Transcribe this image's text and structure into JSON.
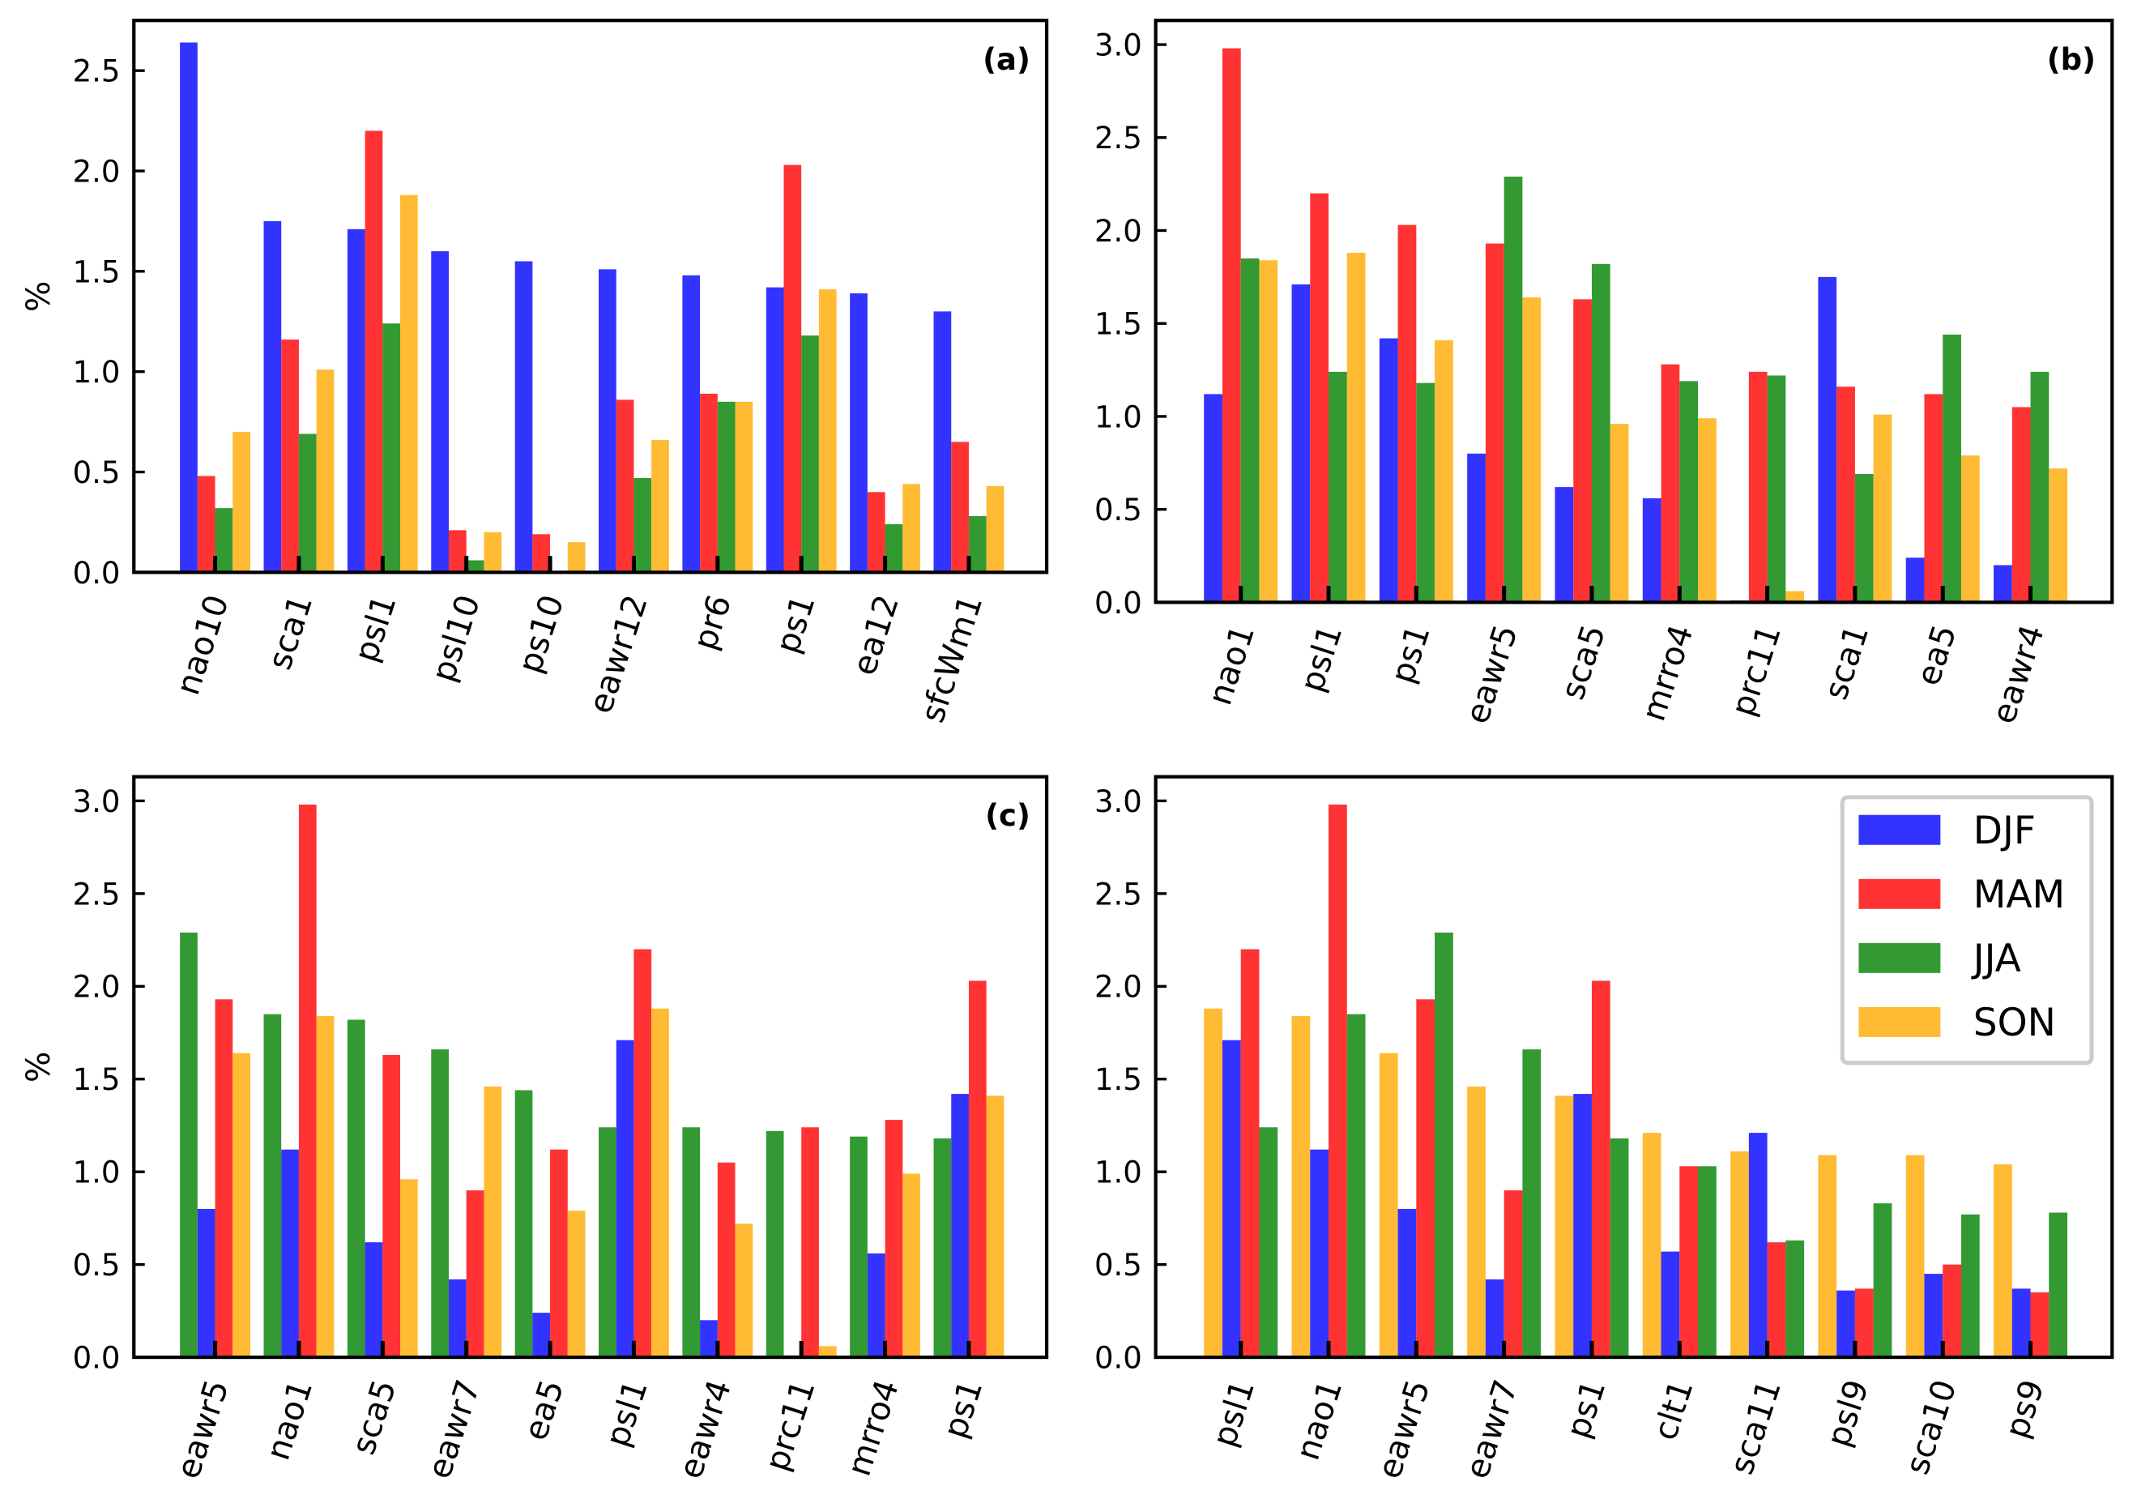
{
  "colors": {
    "DJF": "#3333ff",
    "MAM": "#ff3333",
    "JJA": "#339933",
    "SON": "#ffbb33"
  },
  "legend": [
    "DJF",
    "MAM",
    "JJA",
    "SON"
  ],
  "chart_data": [
    {
      "type": "bar",
      "panel": "(a)",
      "ylabel": "%",
      "ylim": [
        0,
        2.75
      ],
      "yticks": [
        "0.0",
        "0.5",
        "1.0",
        "1.5",
        "2.0",
        "2.5"
      ],
      "ytick_values": [
        0,
        0.5,
        1,
        1.5,
        2,
        2.5
      ],
      "categories": [
        "nao10",
        "sca1",
        "psl1",
        "psl10",
        "ps10",
        "eawr12",
        "pr6",
        "ps1",
        "ea12",
        "sfcWm1"
      ],
      "series": [
        {
          "name": "DJF",
          "values": [
            2.64,
            1.75,
            1.71,
            1.6,
            1.55,
            1.51,
            1.48,
            1.42,
            1.39,
            1.3
          ]
        },
        {
          "name": "MAM",
          "values": [
            0.48,
            1.16,
            2.2,
            0.21,
            0.19,
            0.86,
            0.89,
            2.03,
            0.4,
            0.65
          ]
        },
        {
          "name": "JJA",
          "values": [
            0.32,
            0.69,
            1.24,
            0.06,
            0.0,
            0.47,
            0.85,
            1.18,
            0.24,
            0.28
          ]
        },
        {
          "name": "SON",
          "values": [
            0.7,
            1.01,
            1.88,
            0.2,
            0.15,
            0.66,
            0.85,
            1.41,
            0.44,
            0.43
          ]
        }
      ]
    },
    {
      "type": "bar",
      "panel": "(b)",
      "ylabel": "",
      "ylim": [
        0,
        3.13
      ],
      "yticks": [
        "0.0",
        "0.5",
        "1.0",
        "1.5",
        "2.0",
        "2.5",
        "3.0"
      ],
      "ytick_values": [
        0,
        0.5,
        1,
        1.5,
        2,
        2.5,
        3
      ],
      "categories": [
        "nao1",
        "psl1",
        "ps1",
        "eawr5",
        "sca5",
        "mrro4",
        "prc11",
        "sca1",
        "ea5",
        "eawr4"
      ],
      "series": [
        {
          "name": "DJF",
          "values": [
            1.12,
            1.71,
            1.42,
            0.8,
            0.62,
            0.56,
            0.01,
            1.75,
            0.24,
            0.2
          ]
        },
        {
          "name": "MAM",
          "values": [
            2.98,
            2.2,
            2.03,
            1.93,
            1.63,
            1.28,
            1.24,
            1.16,
            1.12,
            1.05
          ]
        },
        {
          "name": "JJA",
          "values": [
            1.85,
            1.24,
            1.18,
            2.29,
            1.82,
            1.19,
            1.22,
            0.69,
            1.44,
            1.24
          ]
        },
        {
          "name": "SON",
          "values": [
            1.84,
            1.88,
            1.41,
            1.64,
            0.96,
            0.99,
            0.06,
            1.01,
            0.79,
            0.72
          ]
        }
      ]
    },
    {
      "type": "bar",
      "panel": "(c)",
      "ylabel": "%",
      "ylim": [
        0,
        3.13
      ],
      "yticks": [
        "0.0",
        "0.5",
        "1.0",
        "1.5",
        "2.0",
        "2.5",
        "3.0"
      ],
      "ytick_values": [
        0,
        0.5,
        1,
        1.5,
        2,
        2.5,
        3
      ],
      "categories": [
        "eawr5",
        "nao1",
        "sca5",
        "eawr7",
        "ea5",
        "psl1",
        "eawr4",
        "prc11",
        "mrro4",
        "ps1"
      ],
      "series": [
        {
          "name": "JJA",
          "values": [
            2.29,
            1.85,
            1.82,
            1.66,
            1.44,
            1.24,
            1.24,
            1.22,
            1.19,
            1.18
          ]
        },
        {
          "name": "DJF",
          "values": [
            0.8,
            1.12,
            0.62,
            0.42,
            0.24,
            1.71,
            0.2,
            0.01,
            0.56,
            1.42
          ]
        },
        {
          "name": "MAM",
          "values": [
            1.93,
            2.98,
            1.63,
            0.9,
            1.12,
            2.2,
            1.05,
            1.24,
            1.28,
            2.03
          ]
        },
        {
          "name": "SON",
          "values": [
            1.64,
            1.84,
            0.96,
            1.46,
            0.79,
            1.88,
            0.72,
            0.06,
            0.99,
            1.41
          ]
        }
      ]
    },
    {
      "type": "bar",
      "panel": "(d)",
      "ylabel": "",
      "ylim": [
        0,
        3.13
      ],
      "yticks": [
        "0.0",
        "0.5",
        "1.0",
        "1.5",
        "2.0",
        "2.5",
        "3.0"
      ],
      "ytick_values": [
        0,
        0.5,
        1,
        1.5,
        2,
        2.5,
        3
      ],
      "categories": [
        "psl1",
        "nao1",
        "eawr5",
        "eawr7",
        "ps1",
        "clt1",
        "sca11",
        "psl9",
        "sca10",
        "ps9"
      ],
      "series": [
        {
          "name": "SON",
          "values": [
            1.88,
            1.84,
            1.64,
            1.46,
            1.41,
            1.21,
            1.11,
            1.09,
            1.09,
            1.04
          ]
        },
        {
          "name": "DJF",
          "values": [
            1.71,
            1.12,
            0.8,
            0.42,
            1.42,
            0.57,
            1.21,
            0.36,
            0.45,
            0.37
          ]
        },
        {
          "name": "MAM",
          "values": [
            2.2,
            2.98,
            1.93,
            0.9,
            2.03,
            1.03,
            0.62,
            0.37,
            0.5,
            0.35
          ]
        },
        {
          "name": "JJA",
          "values": [
            1.24,
            1.85,
            2.29,
            1.66,
            1.18,
            1.03,
            0.63,
            0.83,
            0.77,
            0.78
          ]
        }
      ],
      "legend_placement": "top-right"
    }
  ]
}
